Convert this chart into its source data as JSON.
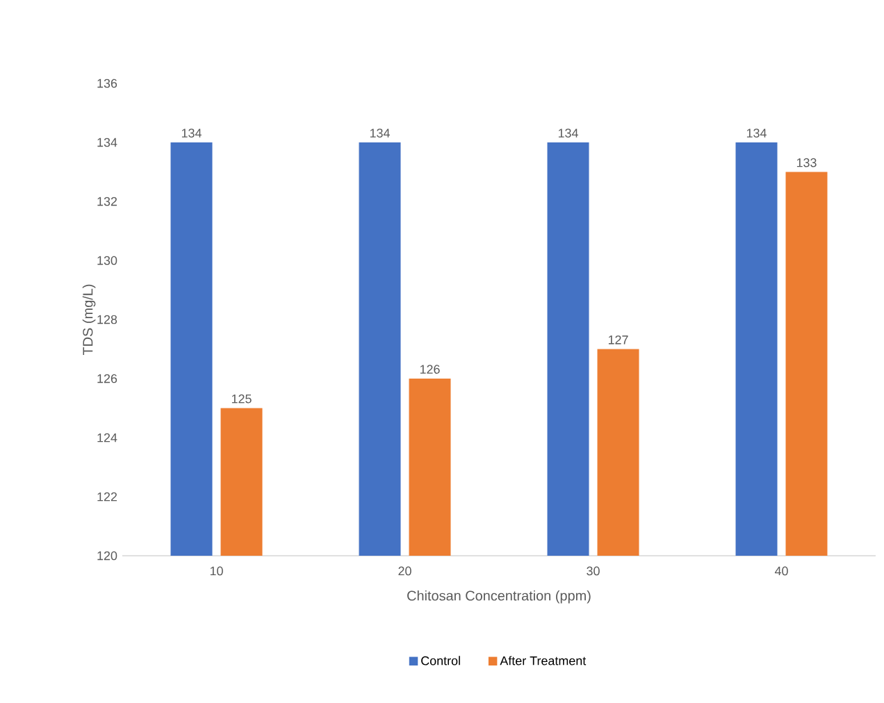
{
  "chart_data": {
    "type": "bar",
    "xlabel": "Chitosan Concentration (ppm)",
    "ylabel": "TDS (mg/L)",
    "categories": [
      "10",
      "20",
      "30",
      "40"
    ],
    "series": [
      {
        "name": "Control",
        "color": "#4472c4",
        "values": [
          134,
          134,
          134,
          134
        ]
      },
      {
        "name": "After Treatment",
        "color": "#ed7d31",
        "values": [
          125,
          126,
          127,
          133
        ]
      }
    ],
    "ylim": [
      120,
      136
    ],
    "yticks": [
      120,
      122,
      124,
      126,
      128,
      130,
      132,
      134,
      136
    ],
    "grid": false,
    "legend": "bottom",
    "data_labels": true
  }
}
